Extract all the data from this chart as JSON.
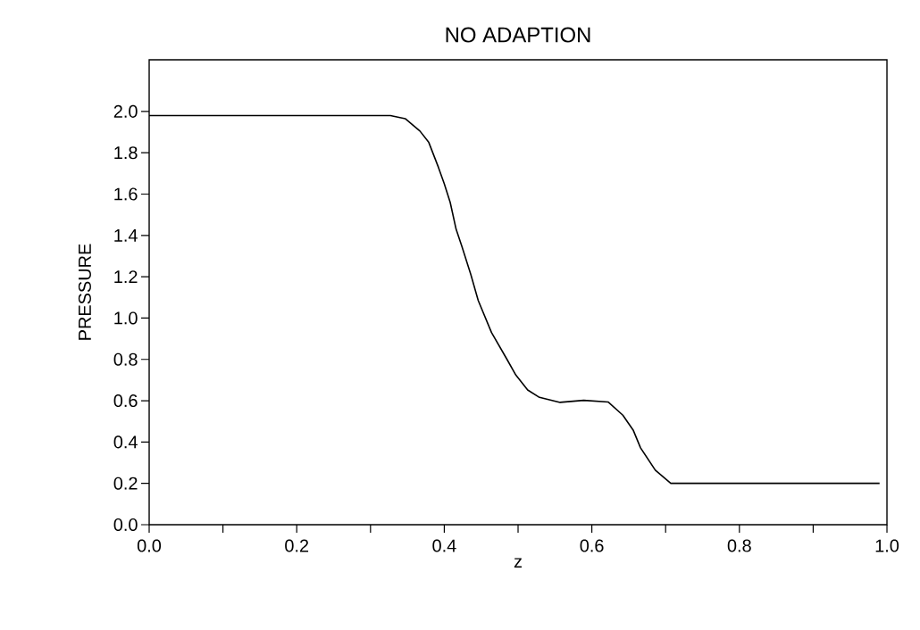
{
  "chart_data": {
    "type": "line",
    "title": "NO ADAPTION",
    "xlabel": "z",
    "ylabel": "PRESSURE",
    "x": [
      0,
      0.327,
      0.347,
      0.367,
      0.379,
      0.392,
      0.4,
      0.408,
      0.416,
      0.424,
      0.436,
      0.446,
      0.464,
      0.485,
      0.497,
      0.513,
      0.529,
      0.557,
      0.589,
      0.622,
      0.642,
      0.656,
      0.666,
      0.686,
      0.707,
      0.99
    ],
    "series": [
      {
        "color": "#000000",
        "values": [
          1.98,
          1.98,
          1.965,
          1.905,
          1.85,
          1.73,
          1.65,
          1.56,
          1.43,
          1.345,
          1.21,
          1.085,
          0.93,
          0.8,
          0.724,
          0.652,
          0.616,
          0.592,
          0.602,
          0.594,
          0.53,
          0.458,
          0.372,
          0.264,
          0.2,
          0.2
        ]
      }
    ],
    "xlim": [
      0,
      1
    ],
    "ylim": [
      0,
      2.25
    ],
    "xticks": [
      {
        "value": 0,
        "label": "0.0"
      },
      {
        "value": 0.1,
        "label": null
      },
      0.2,
      {
        "value": 0.3,
        "label": null
      },
      0.4,
      {
        "value": 0.5,
        "label": null
      },
      0.6,
      {
        "value": 0.7,
        "label": null
      },
      0.8,
      {
        "value": 0.9,
        "label": null
      },
      {
        "value": 1,
        "label": "1.0"
      }
    ],
    "yticks": [
      {
        "value": 0,
        "label": "0.0"
      },
      0.2,
      0.4,
      0.6,
      0.8,
      {
        "value": 1,
        "label": "1.0"
      },
      1.2,
      1.4,
      1.6,
      1.8,
      {
        "value": 2,
        "label": "2.0"
      }
    ],
    "grid": false,
    "marker": "none",
    "line_style": "solid"
  }
}
